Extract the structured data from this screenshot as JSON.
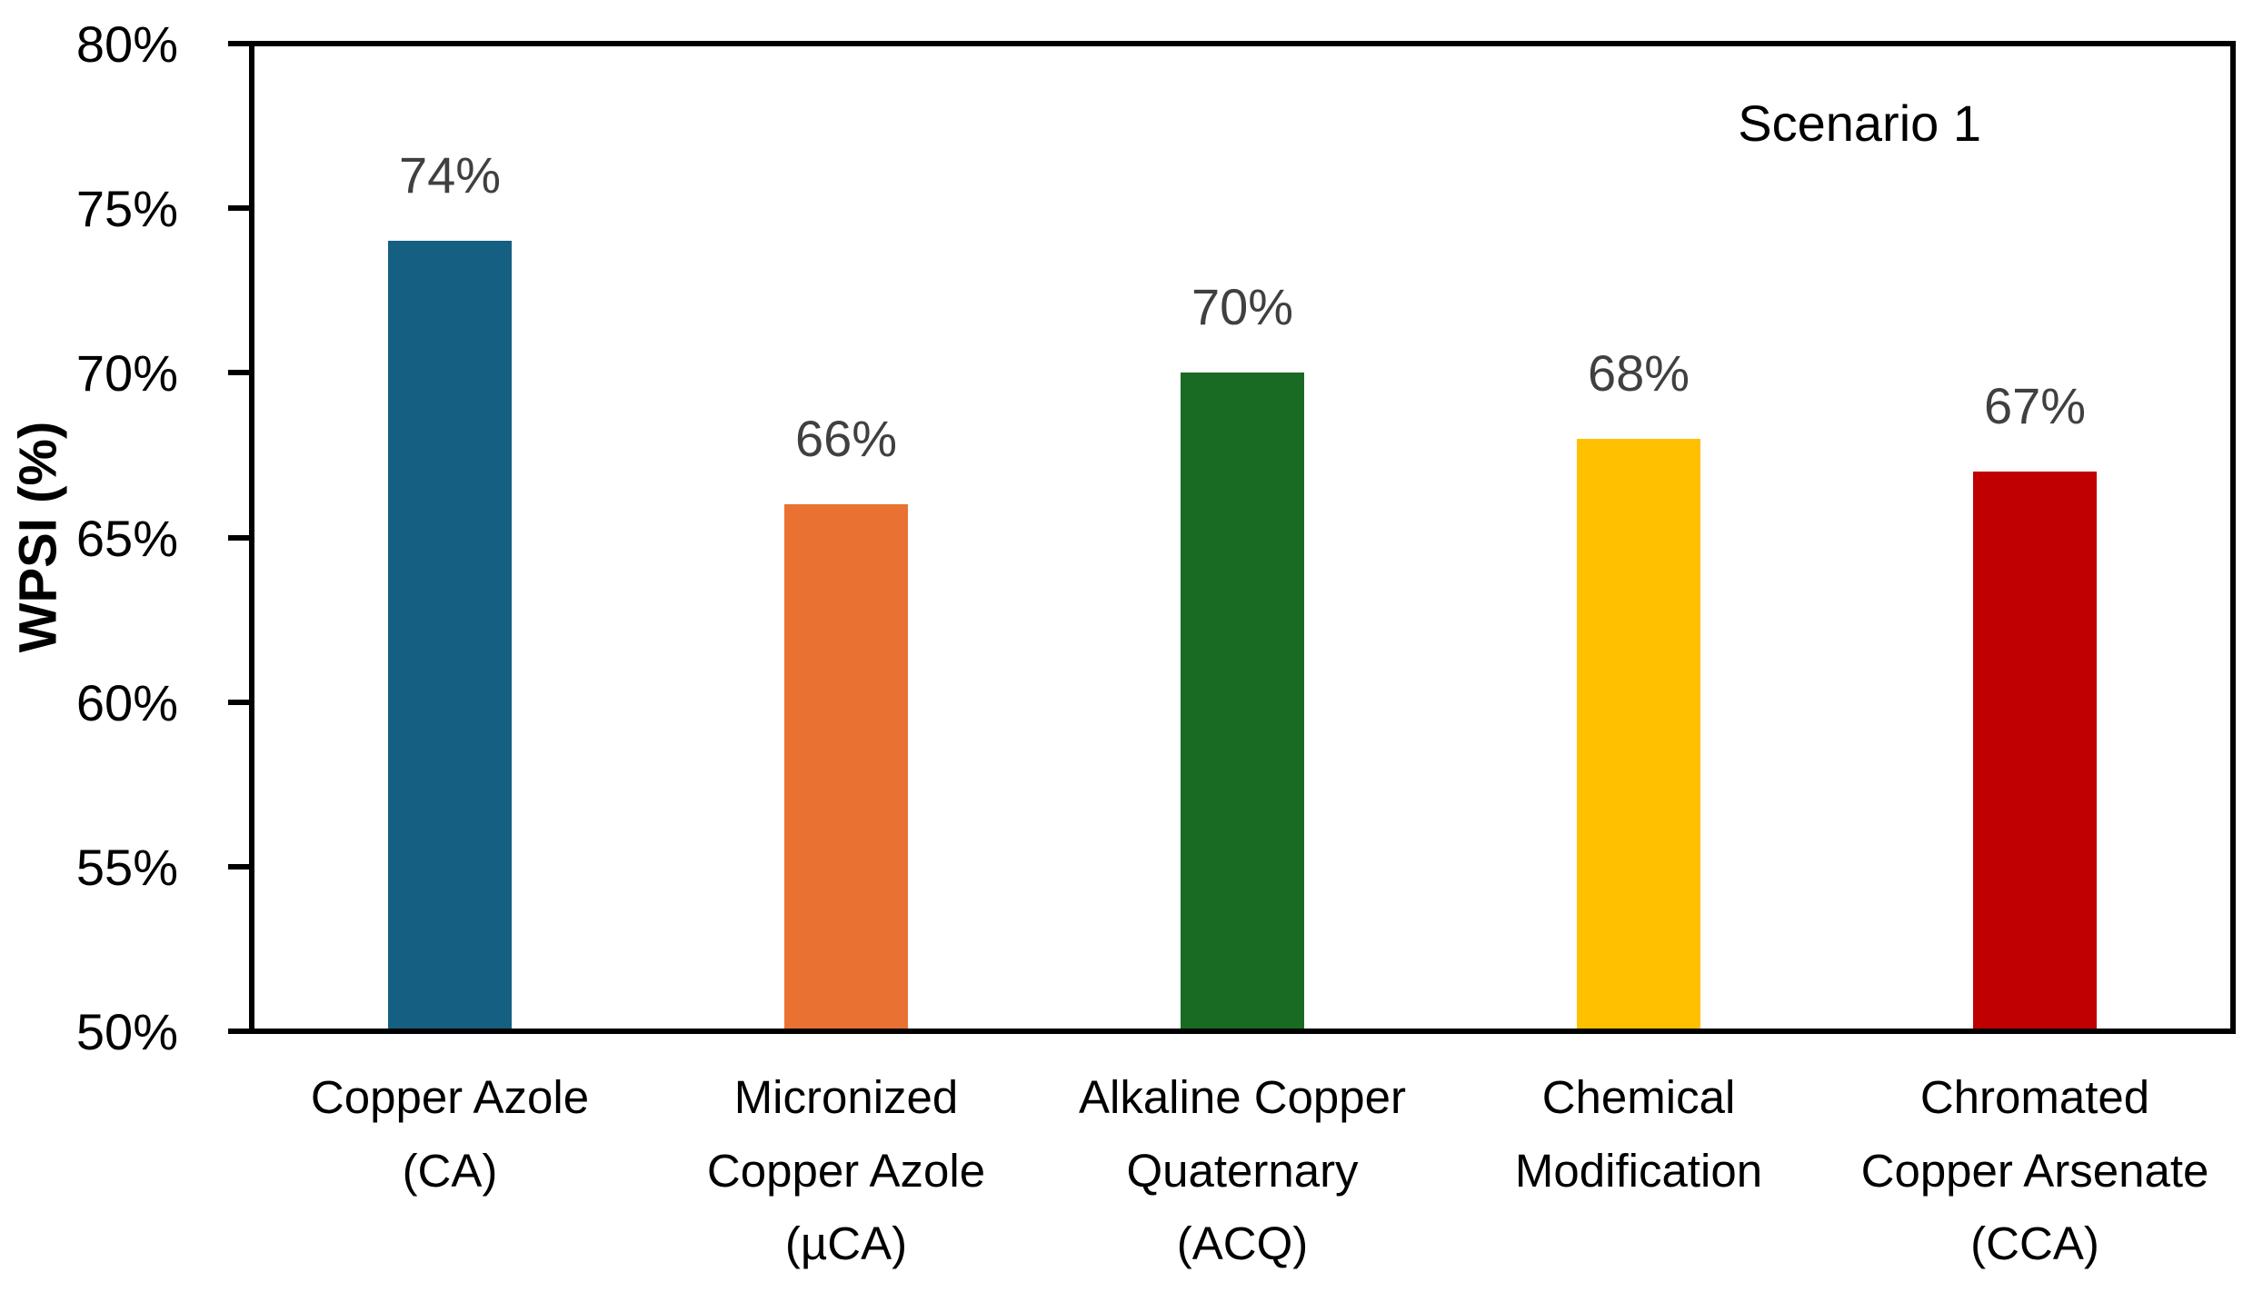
{
  "chart_data": {
    "type": "bar",
    "title": "",
    "xlabel": "",
    "ylabel": "WPSI (%)",
    "annotation": "Scenario 1",
    "categories": [
      "Copper Azole (CA)",
      "Micronized Copper Azole (µCA)",
      "Alkaline Copper Quaternary (ACQ)",
      "Chemical Modification",
      "Chromated Copper Arsenate (CCA)"
    ],
    "category_lines": [
      [
        "Copper Azole",
        "(CA)"
      ],
      [
        "Micronized",
        "Copper Azole",
        "(µCA)"
      ],
      [
        "Alkaline Copper",
        "Quaternary",
        "(ACQ)"
      ],
      [
        "Chemical",
        "Modification"
      ],
      [
        "Chromated",
        "Copper Arsenate",
        "(CCA)"
      ]
    ],
    "values": [
      74,
      66,
      70,
      68,
      67
    ],
    "data_labels": [
      "74%",
      "66%",
      "70%",
      "68%",
      "67%"
    ],
    "bar_colors": [
      "#156082",
      "#E97132",
      "#196B24",
      "#FFC000",
      "#C00000"
    ],
    "ylim": [
      50,
      80
    ],
    "yticks": [
      {
        "value": 50,
        "label": "50%"
      },
      {
        "value": 55,
        "label": "55%"
      },
      {
        "value": 60,
        "label": "60%"
      },
      {
        "value": 65,
        "label": "65%"
      },
      {
        "value": 70,
        "label": "70%"
      },
      {
        "value": 75,
        "label": "75%"
      },
      {
        "value": 80,
        "label": "80%"
      }
    ],
    "grid": false,
    "legend": "none",
    "data_label_color": "#404040",
    "axis_color": "#000000"
  }
}
